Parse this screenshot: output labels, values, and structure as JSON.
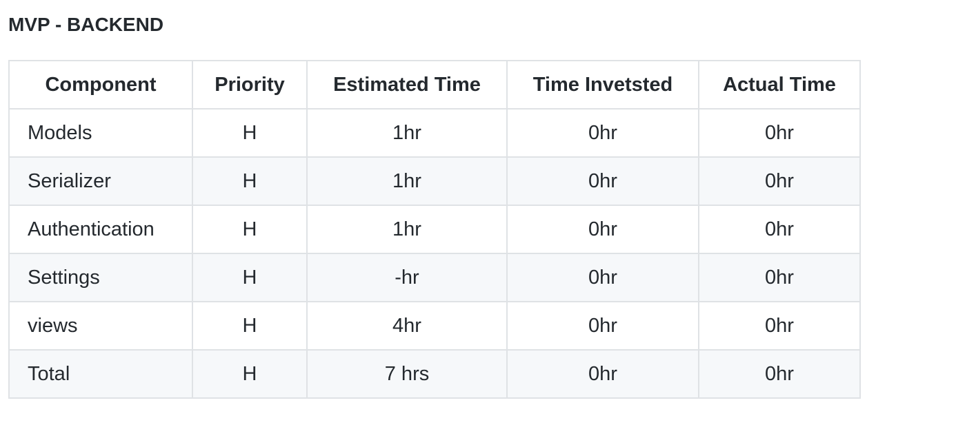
{
  "heading": "MVP - BACKEND",
  "table": {
    "headers": [
      "Component",
      "Priority",
      "Estimated Time",
      "Time Invetsted",
      "Actual Time"
    ],
    "rows": [
      [
        "Models",
        "H",
        "1hr",
        "0hr",
        "0hr"
      ],
      [
        "Serializer",
        "H",
        "1hr",
        "0hr",
        "0hr"
      ],
      [
        "Authentication",
        "H",
        "1hr",
        "0hr",
        "0hr"
      ],
      [
        "Settings",
        "H",
        "-hr",
        "0hr",
        "0hr"
      ],
      [
        "views",
        "H",
        "4hr",
        "0hr",
        "0hr"
      ],
      [
        "Total",
        "H",
        "7 hrs",
        "0hr",
        "0hr"
      ]
    ]
  },
  "colors": {
    "text": "#24292e",
    "border": "#dfe2e5",
    "stripe": "#f6f8fa"
  }
}
